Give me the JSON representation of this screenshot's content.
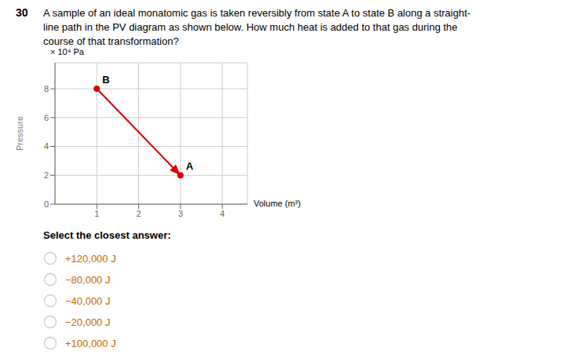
{
  "chart_data": {
    "type": "line",
    "title": "30",
    "subtitle": [
      "A sample of an ideal monatomic gas is taken reversibly from state A to state B along a straight-",
      "line path in the PV diagram as shown below. How much heat is added to that gas during the",
      "course of that transformation?"
    ],
    "x_label": "Volume (m³)",
    "y_label": "Pressure",
    "y_units": "× 10⁴ Pa",
    "x": [
      1,
      3
    ],
    "series": [
      {
        "values": [
          8,
          2
        ],
        "color": "#dd0000",
        "marker": "circle",
        "line_style": "solid"
      }
    ],
    "xlim": [
      0,
      4.6
    ],
    "xticks": [
      1,
      2,
      3,
      4
    ],
    "ylim": [
      0,
      9.8
    ],
    "yticks": [
      0,
      2,
      4,
      6,
      8
    ],
    "grid": true,
    "annotations": [
      {
        "text": "B",
        "x": 1,
        "y": 8
      },
      {
        "text": "A",
        "x": 3,
        "y": 2
      },
      {
        "text": "Select the closest answer:"
      },
      {
        "text": "+120,000 J",
        "color": "#cc6600"
      },
      {
        "text": "−80,000 J",
        "color": "#cc6600"
      },
      {
        "text": "−40,000 J",
        "color": "#cc6600"
      },
      {
        "text": "−20,000 J",
        "color": "#cc6600"
      },
      {
        "text": "+100,000 J",
        "color": "#cc6600"
      }
    ]
  }
}
